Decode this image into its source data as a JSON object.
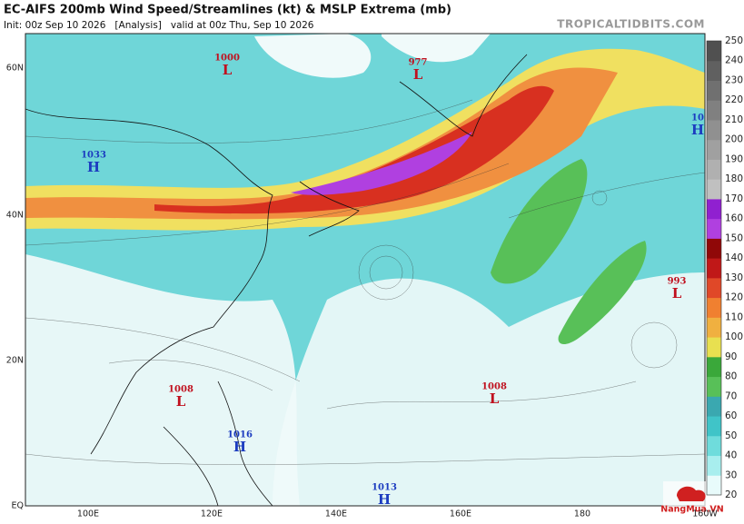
{
  "header": {
    "title": "EC-AIFS 200mb Wind Speed/Streamlines (kt) & MSLP Extrema (mb)",
    "init": "Init: 00z Sep 10 2026   [Analysis]   valid at 00z Thu, Sep 10 2026",
    "watermark": "TROPICALTIDBITS.COM"
  },
  "map": {
    "lat_labels": [
      "60N",
      "40N",
      "20N",
      "EQ"
    ],
    "lon_labels": [
      "100E",
      "120E",
      "140E",
      "160E",
      "180",
      "160W"
    ],
    "centers": [
      {
        "value": "1000",
        "type": "L"
      },
      {
        "value": "977",
        "type": "L"
      },
      {
        "value": "1033",
        "type": "H"
      },
      {
        "value": "10",
        "type": "H"
      },
      {
        "value": "993",
        "type": "L"
      },
      {
        "value": "1008",
        "type": "L"
      },
      {
        "value": "1008",
        "type": "L"
      },
      {
        "value": "1016",
        "type": "H"
      },
      {
        "value": "1013",
        "type": "H"
      }
    ]
  },
  "colorbar": {
    "levels": [
      20,
      30,
      40,
      50,
      60,
      70,
      80,
      90,
      100,
      110,
      120,
      130,
      140,
      150,
      160,
      170,
      180,
      190,
      200,
      210,
      220,
      230,
      240,
      250
    ],
    "colors": [
      "#e8fbfb",
      "#a8eeee",
      "#6fdcdc",
      "#40c4c8",
      "#3aa8b0",
      "#58c058",
      "#3aa83a",
      "#e8e050",
      "#f0b040",
      "#f08030",
      "#e04828",
      "#c01818",
      "#900808",
      "#b040e0",
      "#9020d0",
      "#c0c0c0",
      "#b0b0b0",
      "#a0a0a0",
      "#909090",
      "#808080",
      "#707070",
      "#606060",
      "#505050"
    ]
  },
  "footer": {
    "logo": "NangMua.VN"
  }
}
